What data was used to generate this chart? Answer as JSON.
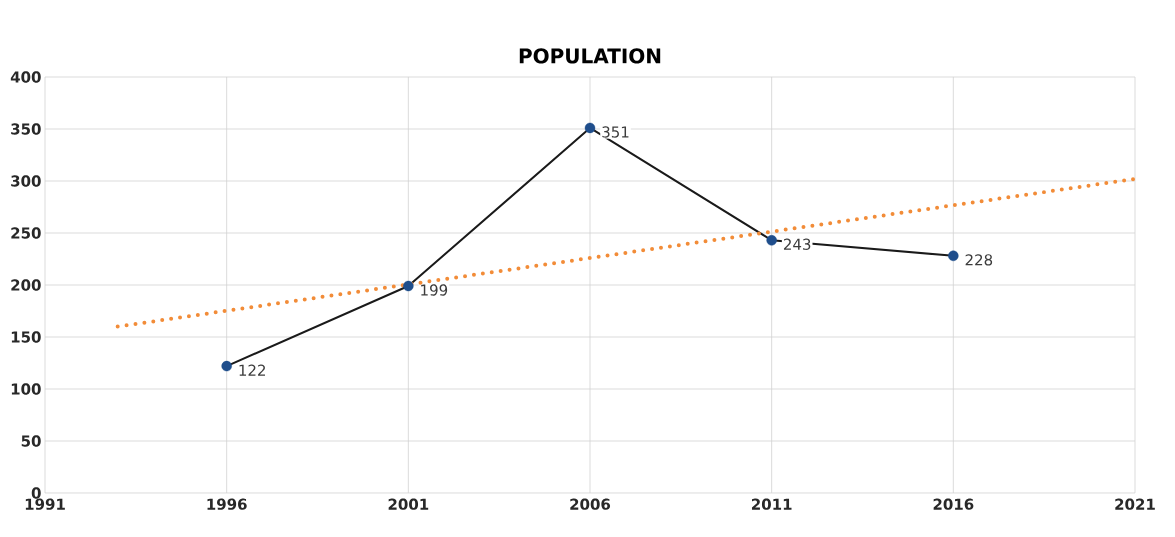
{
  "chart_data": {
    "type": "line",
    "title": "POPULATION",
    "xlim": [
      1991,
      2021
    ],
    "xticks": [
      1991,
      1996,
      2001,
      2006,
      2011,
      2016,
      2021
    ],
    "ylim": [
      0,
      400
    ],
    "yticks": [
      0,
      50,
      100,
      150,
      200,
      250,
      300,
      350,
      400
    ],
    "grid": true,
    "series": [
      {
        "x": [
          1996,
          2001,
          2006,
          2011,
          2016
        ],
        "values": [
          122,
          199,
          351,
          243,
          228
        ],
        "value_labels": [
          "122",
          "199",
          "351",
          "243",
          "228"
        ],
        "color": "#1a1a1a",
        "colors": [
          "#1f4e8c",
          "#1f4e8c",
          "#1f4e8c",
          "#1f4e8c",
          "#1f4e8c"
        ],
        "marker": "circle",
        "line_style": "solid"
      },
      {
        "x": [
          1993,
          2021
        ],
        "values": [
          160,
          302
        ],
        "color": "#f28c38",
        "marker": "none",
        "line_style": "dotted"
      }
    ]
  }
}
